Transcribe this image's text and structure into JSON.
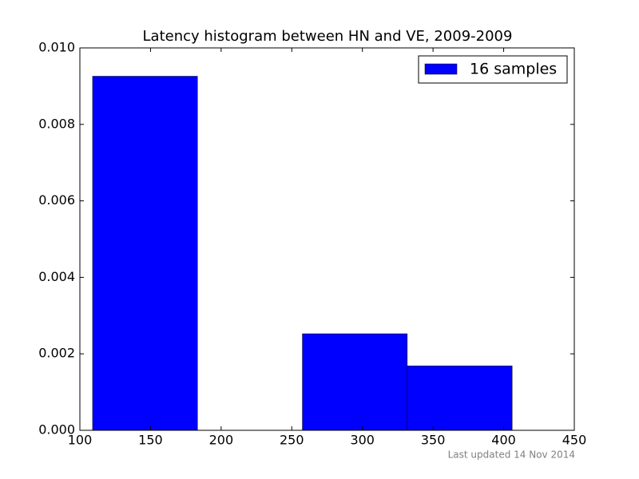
{
  "chart_data": {
    "type": "histogram",
    "title": "Latency histogram between HN and VE, 2009-2009",
    "bins": [
      109,
      183.25,
      257.5,
      331.75,
      406
    ],
    "series": [
      {
        "name": "16 samples",
        "color": "#0000ff",
        "values": [
          0.009259,
          0,
          0.002525,
          0.001684
        ]
      }
    ],
    "xlim": [
      100,
      450
    ],
    "xticks": [
      100,
      150,
      200,
      250,
      300,
      350,
      400,
      450
    ],
    "ylim": [
      0,
      0.01
    ],
    "yticks": [
      {
        "value": 0,
        "label": "0.000"
      },
      {
        "value": 0.002,
        "label": "0.002"
      },
      {
        "value": 0.004,
        "label": "0.004"
      },
      {
        "value": 0.006,
        "label": "0.006"
      },
      {
        "value": 0.008,
        "label": "0.008"
      },
      {
        "value": 0.01,
        "label": "0.010"
      }
    ],
    "legend": "upper right",
    "footer": "Last updated 14 Nov 2014"
  }
}
